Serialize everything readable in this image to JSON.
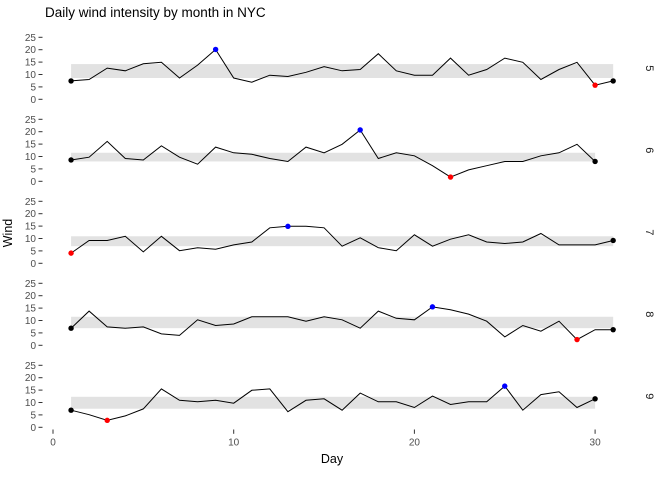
{
  "chart_data": {
    "type": "line",
    "title": "Daily wind intensity by month in NYC",
    "xlabel": "Day",
    "ylabel": "Wind",
    "x_ticks": [
      0,
      10,
      20,
      30
    ],
    "y_ticks": [
      0,
      5,
      10,
      15,
      20,
      25
    ],
    "ylim": [
      0,
      27
    ],
    "xlim": [
      -0.5,
      32.5
    ],
    "grid": false,
    "legend": "none",
    "facet_strip_side": "right",
    "colors": {
      "line": "#000000",
      "band": "#E2E2E2",
      "max_point": "#0000FF",
      "min_point": "#FF0000",
      "endpoint": "#000000",
      "tick_text": "#4D4D4D",
      "tick_mark": "#333333",
      "background": "#FFFFFF"
    },
    "facets": [
      {
        "label": "5",
        "wind": [
          7.4,
          8.0,
          12.6,
          11.5,
          14.3,
          14.9,
          8.6,
          13.8,
          20.1,
          8.6,
          6.9,
          9.7,
          9.2,
          10.9,
          13.2,
          11.5,
          12.0,
          18.4,
          11.5,
          9.7,
          9.7,
          16.6,
          9.7,
          12.0,
          16.6,
          14.9,
          8.0,
          12.0,
          14.9,
          5.7,
          7.4
        ],
        "band": [
          8.6,
          14.2
        ],
        "max_day": 9,
        "min_day": 30,
        "endpoint_days": [
          1,
          31
        ]
      },
      {
        "label": "6",
        "wind": [
          8.6,
          9.7,
          16.1,
          9.2,
          8.6,
          14.3,
          9.7,
          6.9,
          13.8,
          11.5,
          10.9,
          9.2,
          8.0,
          13.8,
          11.5,
          14.9,
          20.7,
          9.2,
          11.5,
          10.3,
          6.3,
          1.7,
          4.6,
          6.3,
          8.0,
          8.0,
          10.3,
          11.5,
          14.9,
          8.0
        ],
        "band": [
          8.0,
          11.5
        ],
        "max_day": 17,
        "min_day": 22,
        "endpoint_days": [
          1,
          30
        ]
      },
      {
        "label": "7",
        "wind": [
          4.1,
          9.2,
          9.2,
          10.9,
          4.6,
          10.9,
          5.1,
          6.3,
          5.7,
          7.4,
          8.6,
          14.3,
          14.9,
          14.9,
          14.3,
          6.9,
          10.3,
          6.3,
          5.1,
          11.5,
          6.9,
          9.7,
          11.5,
          8.6,
          8.0,
          8.6,
          12.0,
          7.4,
          7.4,
          7.4,
          9.2
        ],
        "band": [
          6.9,
          10.9
        ],
        "max_day": 13,
        "min_day": 1,
        "endpoint_days": [
          31
        ]
      },
      {
        "label": "8",
        "wind": [
          6.9,
          13.8,
          7.4,
          6.9,
          7.4,
          4.6,
          4.0,
          10.3,
          8.0,
          8.6,
          11.5,
          11.5,
          11.5,
          9.7,
          11.5,
          10.3,
          6.9,
          13.8,
          10.9,
          10.3,
          15.5,
          14.3,
          12.6,
          9.7,
          3.4,
          8.0,
          5.7,
          9.7,
          2.3,
          6.3,
          6.3
        ],
        "band": [
          6.9,
          11.5
        ],
        "max_day": 21,
        "min_day": 29,
        "endpoint_days": [
          1,
          31
        ]
      },
      {
        "label": "9",
        "wind": [
          6.9,
          5.1,
          2.8,
          4.6,
          7.4,
          15.5,
          10.9,
          10.3,
          10.9,
          9.7,
          14.9,
          15.5,
          6.3,
          10.9,
          11.5,
          6.9,
          13.8,
          10.3,
          10.3,
          8.0,
          12.6,
          9.2,
          10.3,
          10.3,
          16.6,
          6.9,
          13.2,
          14.3,
          8.0,
          11.5
        ],
        "band": [
          7.5,
          12.3
        ],
        "max_day": 25,
        "min_day": 3,
        "endpoint_days": [
          1,
          30
        ]
      }
    ]
  }
}
